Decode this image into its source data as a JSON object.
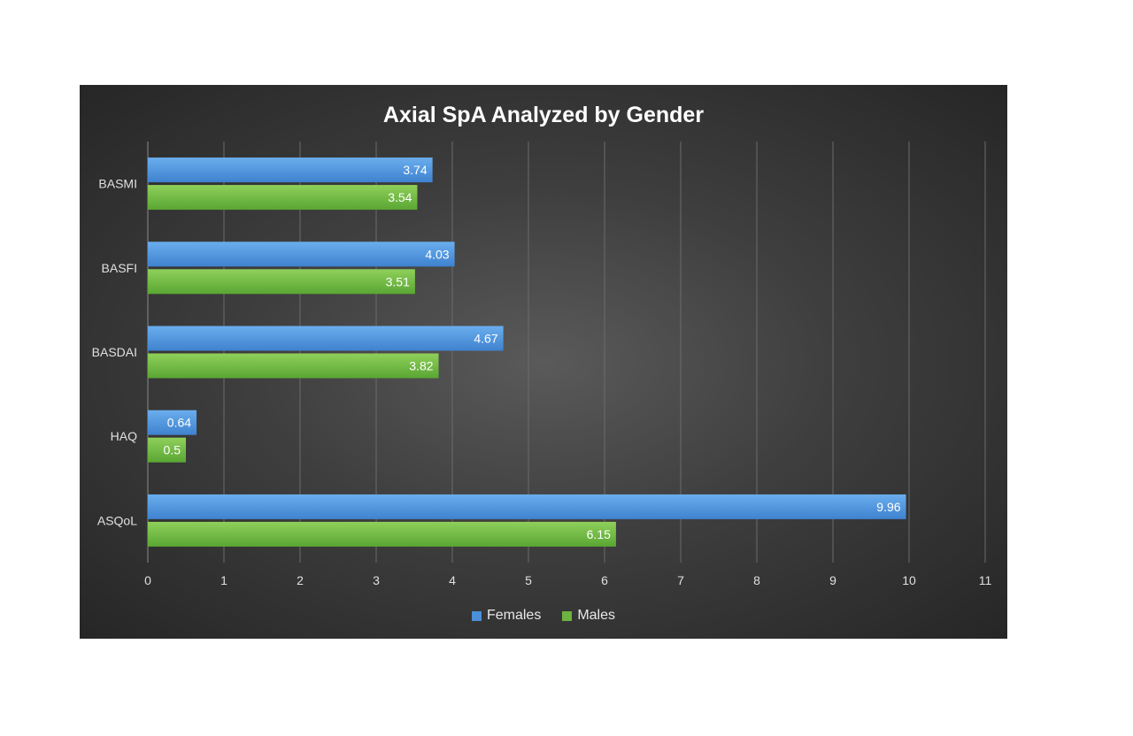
{
  "chart_data": {
    "type": "bar",
    "orientation": "horizontal",
    "title": "Axial SpA Analyzed by Gender",
    "xlabel": "",
    "ylabel": "",
    "categories": [
      "BASMI",
      "BASFI",
      "BASDAI",
      "HAQ",
      "ASQoL"
    ],
    "series": [
      {
        "name": "Females",
        "values": [
          3.74,
          4.03,
          4.67,
          0.64,
          9.96
        ],
        "color": "#4a8fd8"
      },
      {
        "name": "Males",
        "values": [
          3.54,
          3.51,
          3.82,
          0.5,
          6.15
        ],
        "color": "#6db33f"
      }
    ],
    "xlim": [
      0,
      11
    ],
    "xticks": [
      "0",
      "1",
      "2",
      "3",
      "4",
      "5",
      "6",
      "7",
      "8",
      "9",
      "10",
      "11"
    ],
    "grid": true,
    "legend": "bottom",
    "data_labels": true
  }
}
